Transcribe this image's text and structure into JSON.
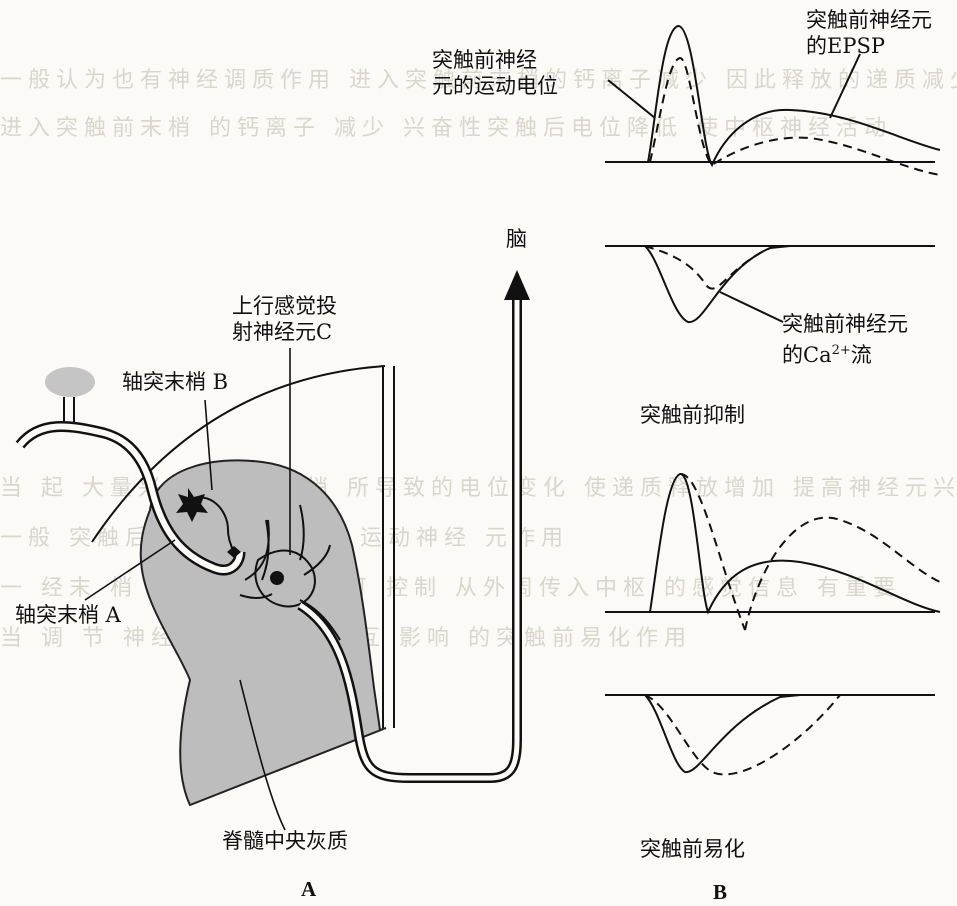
{
  "panel_a": {
    "label": "A",
    "brain": "脑",
    "neuron_c_line1": "上行感觉投",
    "neuron_c_line2": "射神经元C",
    "axon_b": "轴突末梢 B",
    "axon_a": "轴突末梢 A",
    "gray_matter": "脊髓中央灰质"
  },
  "panel_b": {
    "label": "B",
    "action_potential_line1": "突触前神经",
    "action_potential_line2": "元的运动电位",
    "epsp_line1": "突触前神经元",
    "epsp_line2": "的EPSP",
    "ca_line1": "突触前神经元",
    "ca_line2_prefix": "的Ca",
    "ca_sup": "2+",
    "ca_line2_suffix": "流",
    "inhibition_title": "突触前抑制",
    "facilitation_title": "突触前易化"
  },
  "colors": {
    "ink": "#111111",
    "gray_matter": "#bdbdbd",
    "paper": "#fbfaf6"
  }
}
